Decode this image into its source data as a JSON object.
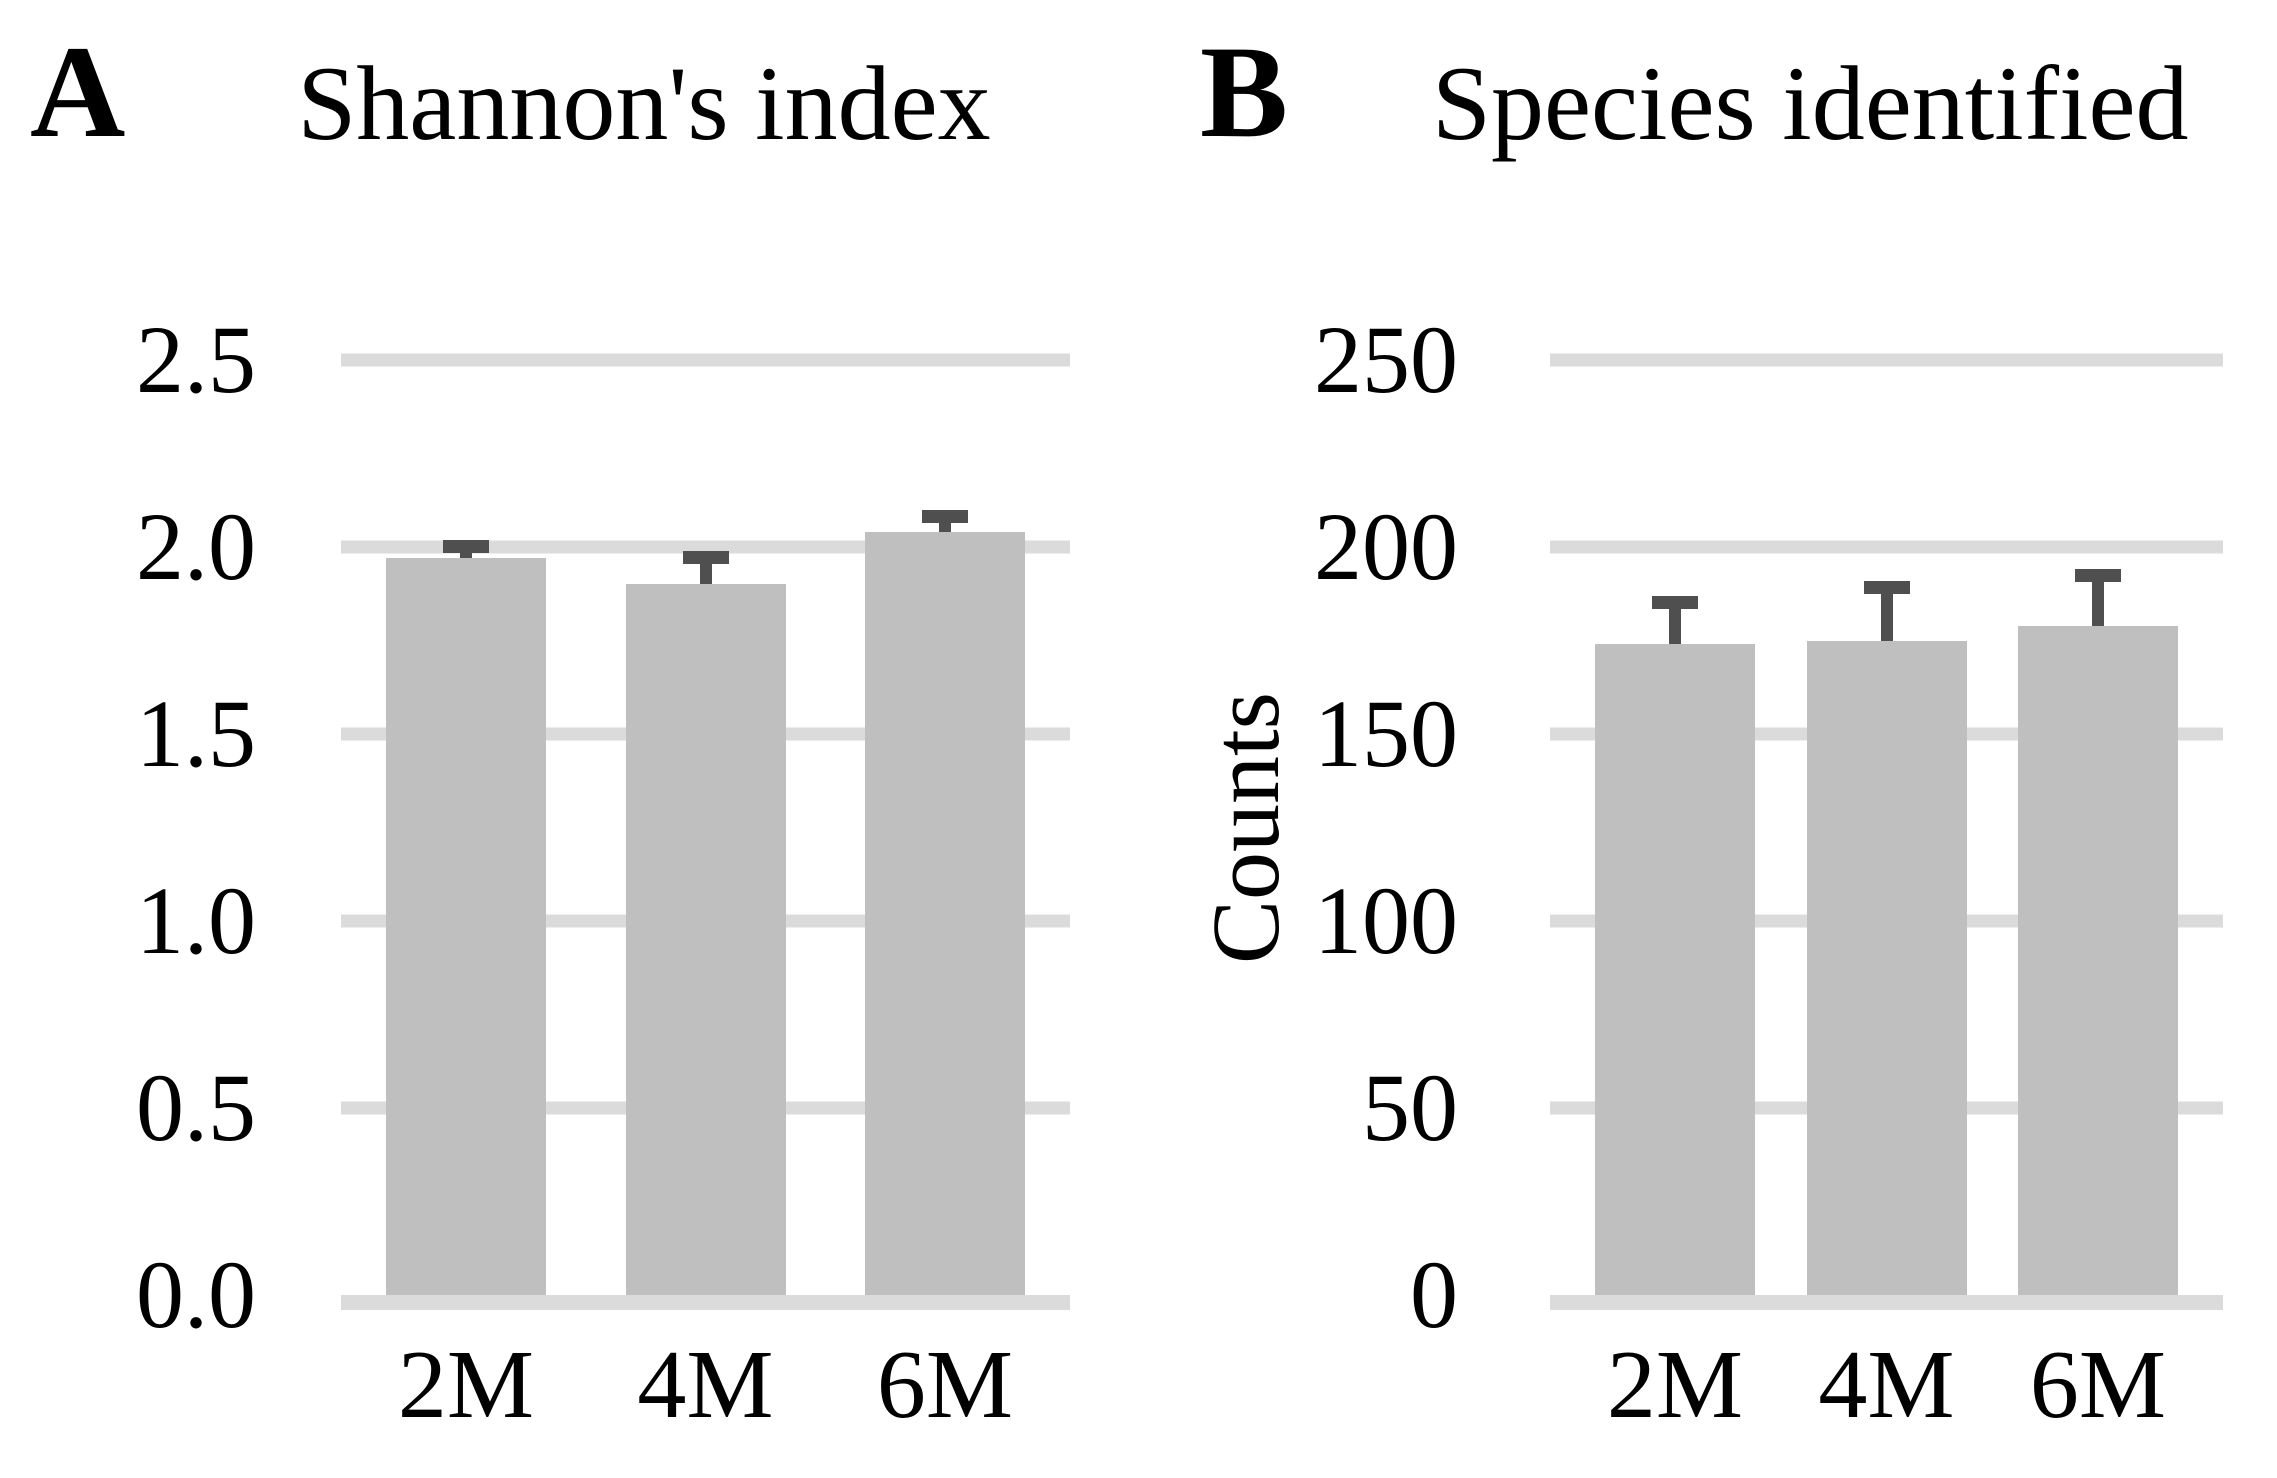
{
  "colors": {
    "bar": "#bfbfbf",
    "error_bar": "#4f4f4f",
    "gridline": "#dbdbdb",
    "text": "#000000",
    "background": "#ffffff"
  },
  "chart_data": [
    {
      "type": "bar",
      "panel_label": "A",
      "title": "Shannon's index",
      "ylabel": "",
      "categories": [
        "2M",
        "4M",
        "6M"
      ],
      "values": [
        1.97,
        1.9,
        2.04
      ],
      "errors_plus": [
        0.05,
        0.09,
        0.06
      ],
      "ylim": [
        0,
        2.5
      ],
      "ytick_labels": [
        "2.5",
        "2.0",
        "1.5",
        "1.0",
        "0.5",
        "0.0"
      ],
      "grid": true,
      "legend": "none"
    },
    {
      "type": "bar",
      "panel_label": "B",
      "title": "Species identified",
      "ylabel": "Counts",
      "categories": [
        "2M",
        "4M",
        "6M"
      ],
      "values": [
        174,
        175,
        179
      ],
      "errors_plus": [
        13,
        16,
        15
      ],
      "ylim": [
        0,
        250
      ],
      "ytick_labels": [
        "250",
        "200",
        "150",
        "100",
        "50",
        "0"
      ],
      "grid": true,
      "legend": "none"
    }
  ]
}
